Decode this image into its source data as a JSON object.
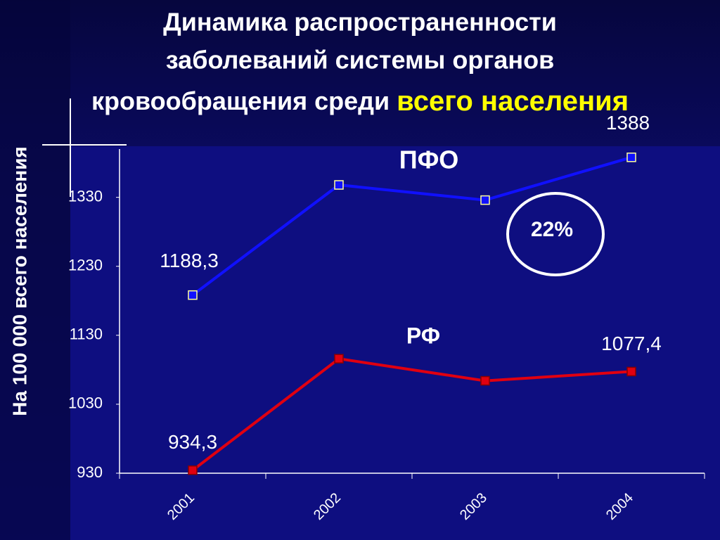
{
  "chart_data": {
    "type": "line",
    "title": [
      "Динамика распространенности",
      "заболеваний системы органов",
      "кровообращения среди"
    ],
    "title_highlight": "всего населения",
    "y_label": "На 100 000 всего населения",
    "categories": [
      "2001",
      "2002",
      "2003",
      "2004"
    ],
    "series": [
      {
        "name": "ПФО",
        "color": "#1010ff",
        "values": [
          1188.3,
          1348,
          1326,
          1388
        ],
        "value_labels": [
          "1188,3",
          null,
          null,
          "1388"
        ]
      },
      {
        "name": "РФ",
        "color": "#e00010",
        "values": [
          934.3,
          1096,
          1064,
          1077.4
        ],
        "value_labels": [
          "934,3",
          null,
          null,
          "1077,4"
        ]
      }
    ],
    "annotation": "22%",
    "ylim": [
      930,
      1400
    ],
    "yticks": [
      930,
      1030,
      1130,
      1230,
      1330
    ]
  }
}
